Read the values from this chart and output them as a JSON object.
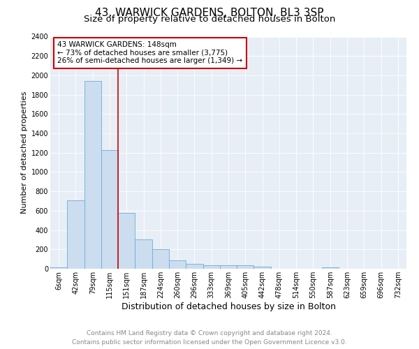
{
  "title": "43, WARWICK GARDENS, BOLTON, BL3 3SP",
  "subtitle": "Size of property relative to detached houses in Bolton",
  "xlabel": "Distribution of detached houses by size in Bolton",
  "ylabel": "Number of detached properties",
  "annotation_line1": "43 WARWICK GARDENS: 148sqm",
  "annotation_line2": "← 73% of detached houses are smaller (3,775)",
  "annotation_line3": "26% of semi-detached houses are larger (1,349) →",
  "footer_line1": "Contains HM Land Registry data © Crown copyright and database right 2024.",
  "footer_line2": "Contains public sector information licensed under the Open Government Licence v3.0.",
  "categories": [
    "6sqm",
    "42sqm",
    "79sqm",
    "115sqm",
    "151sqm",
    "187sqm",
    "224sqm",
    "260sqm",
    "296sqm",
    "333sqm",
    "369sqm",
    "405sqm",
    "442sqm",
    "478sqm",
    "514sqm",
    "550sqm",
    "587sqm",
    "623sqm",
    "659sqm",
    "696sqm",
    "732sqm"
  ],
  "values": [
    15,
    710,
    1940,
    1225,
    575,
    305,
    200,
    85,
    50,
    35,
    35,
    35,
    20,
    0,
    0,
    0,
    15,
    0,
    0,
    0,
    0
  ],
  "bar_color": "#ccddf0",
  "bar_edge_color": "#6aaed6",
  "vline_color": "#cc0000",
  "ylim": [
    0,
    2400
  ],
  "yticks": [
    0,
    200,
    400,
    600,
    800,
    1000,
    1200,
    1400,
    1600,
    1800,
    2000,
    2200,
    2400
  ],
  "bg_color": "#e8eef5",
  "grid_color": "#ffffff",
  "annotation_box_color": "#cc0000",
  "title_fontsize": 11,
  "subtitle_fontsize": 9.5,
  "xlabel_fontsize": 9,
  "ylabel_fontsize": 8,
  "tick_fontsize": 7,
  "footer_fontsize": 6.5,
  "annotation_fontsize": 7.5
}
